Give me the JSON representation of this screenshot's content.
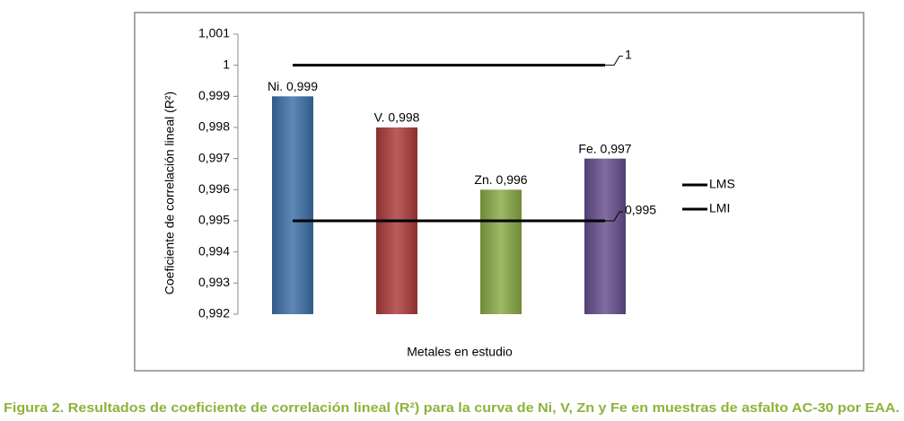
{
  "chart_data": {
    "type": "bar",
    "y_label": "Coeficiente de correlación lineal (R²)",
    "x_label": "Metales en estudio",
    "caption": "Figura 2. Resultados de coeficiente de correlación lineal (R²) para la curva de Ni, V, Zn y Fe en muestras de asfalto AC-30 por EAA.",
    "categories": [
      null,
      null,
      null,
      null
    ],
    "values": [
      0.999,
      0.998,
      0.996,
      0.997
    ],
    "value_labels": [
      "Ni. 0,999",
      "V. 0,998",
      "Zn. 0,996",
      "Fe. 0,997"
    ],
    "colors": [
      "#3b6ea6",
      "#a93a3a",
      "#88aa44",
      "#654d8c"
    ],
    "series": [
      {
        "name": "LMS",
        "color": "#000000",
        "values": [
          1,
          1,
          1,
          1
        ]
      },
      {
        "name": "LMI",
        "color": "#000000",
        "values": [
          0.995,
          0.995,
          0.995,
          0.995
        ],
        "value_labels": [
          null,
          null,
          null,
          "0,995"
        ]
      }
    ],
    "ylim": [
      0.992,
      1.001
    ],
    "yticks": [
      {
        "value": 0.992,
        "label": "0,992"
      },
      {
        "value": 0.993,
        "label": "0,993"
      },
      {
        "value": 0.994,
        "label": "0,994"
      },
      {
        "value": 0.995,
        "label": "0,995"
      },
      {
        "value": 0.996,
        "label": "0,996"
      },
      {
        "value": 0.997,
        "label": "0,997"
      },
      {
        "value": 0.998,
        "label": "0,998"
      },
      {
        "value": 0.999,
        "label": "0,999"
      },
      1,
      {
        "value": 1.001,
        "label": "1,001"
      }
    ],
    "legend": "right"
  }
}
